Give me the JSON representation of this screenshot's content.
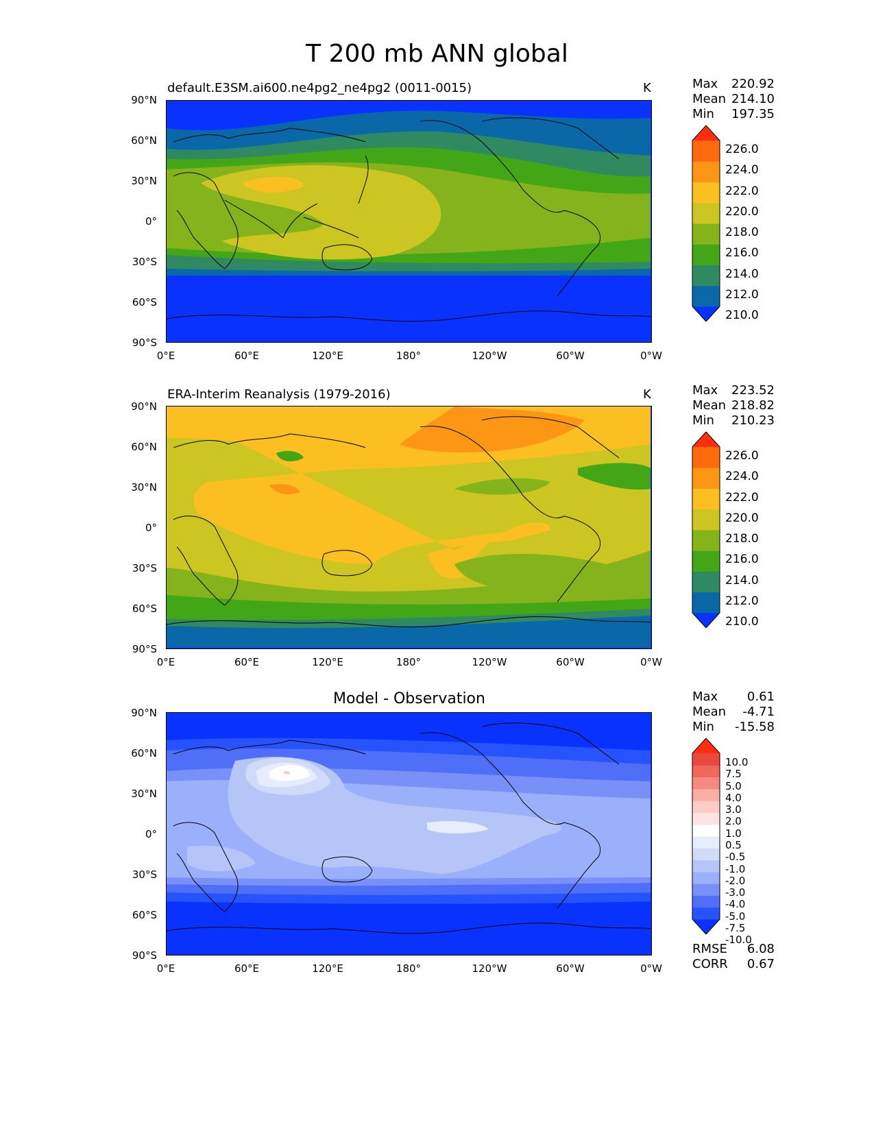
{
  "title": "T 200 mb ANN global",
  "panels": [
    {
      "title": "default.E3SM.ai600.ne4pg2_ne4pg2 (0011-0015)",
      "units": "K",
      "stats": {
        "max_label": "Max",
        "max": "220.92",
        "mean_label": "Mean",
        "mean": "214.10",
        "min_label": "Min",
        "min": "197.35"
      },
      "colorbar_labels": [
        "226.0",
        "224.0",
        "222.0",
        "220.0",
        "218.0",
        "216.0",
        "214.0",
        "212.0",
        "210.0"
      ]
    },
    {
      "title": "ERA-Interim Reanalysis (1979-2016)",
      "units": "K",
      "stats": {
        "max_label": "Max",
        "max": "223.52",
        "mean_label": "Mean",
        "mean": "218.82",
        "min_label": "Min",
        "min": "210.23"
      },
      "colorbar_labels": [
        "226.0",
        "224.0",
        "222.0",
        "220.0",
        "218.0",
        "216.0",
        "214.0",
        "212.0",
        "210.0"
      ]
    },
    {
      "title": "Model - Observation",
      "units": "",
      "stats": {
        "max_label": "Max",
        "max": "0.61",
        "mean_label": "Mean",
        "mean": "-4.71",
        "min_label": "Min",
        "min": "-15.58"
      },
      "colorbar_labels": [
        "10.0",
        "7.5",
        "5.0",
        "4.0",
        "3.0",
        "2.0",
        "1.0",
        "0.5",
        "-0.5",
        "-1.0",
        "-2.0",
        "-3.0",
        "-4.0",
        "-5.0",
        "-7.5",
        "-10.0"
      ],
      "metrics": {
        "rmse_label": "RMSE",
        "rmse": "6.08",
        "corr_label": "CORR",
        "corr": "0.67"
      }
    }
  ],
  "lat_ticks": [
    "90°N",
    "60°N",
    "30°N",
    "0°",
    "30°S",
    "60°S",
    "90°S"
  ],
  "lon_ticks": [
    "0°E",
    "60°E",
    "120°E",
    "180°",
    "120°W",
    "60°W",
    "0°W"
  ],
  "colors": {
    "abs_scale": [
      "#0a32ff",
      "#0a68a8",
      "#2f8a62",
      "#43a617",
      "#85b31c",
      "#cdc622",
      "#fcbf22",
      "#fd9614",
      "#fd6b0e",
      "#fe2e0f"
    ],
    "diff_scale": [
      "#0a32ff",
      "#2653fb",
      "#4f6ff9",
      "#7990f8",
      "#9ab0fa",
      "#b5c5f8",
      "#cfdbf9",
      "#e6edfd",
      "#ffffff",
      "#fde4e4",
      "#fbcbc6",
      "#f9aea4",
      "#f58a80",
      "#f0685c",
      "#e9483c",
      "#fe2e0f"
    ]
  }
}
